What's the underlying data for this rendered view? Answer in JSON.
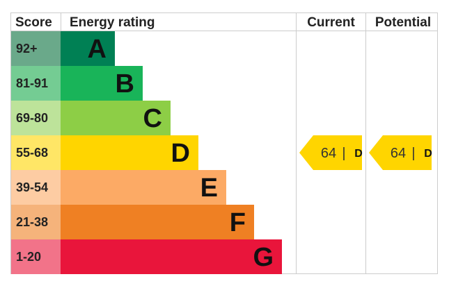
{
  "chart_data": {
    "type": "bar",
    "headers": {
      "score": "Score",
      "rating": "Energy rating",
      "current": "Current",
      "potential": "Potential"
    },
    "bands": [
      {
        "letter": "A",
        "range": "92+",
        "color": "#008054",
        "score_color": "#6aa98a"
      },
      {
        "letter": "B",
        "range": "81-91",
        "color": "#19b459",
        "score_color": "#74cc93"
      },
      {
        "letter": "C",
        "range": "69-80",
        "color": "#8dce46",
        "score_color": "#bde39a"
      },
      {
        "letter": "D",
        "range": "55-68",
        "color": "#ffd500",
        "score_color": "#ffe666"
      },
      {
        "letter": "E",
        "range": "39-54",
        "color": "#fcaa65",
        "score_color": "#fdcca3"
      },
      {
        "letter": "F",
        "range": "21-38",
        "color": "#ef8023",
        "score_color": "#f5b37b"
      },
      {
        "letter": "G",
        "range": "1-20",
        "color": "#e9153b",
        "score_color": "#f27389"
      }
    ],
    "current": {
      "value": "64",
      "separator": "|",
      "band": "D",
      "color": "#ffd500"
    },
    "potential": {
      "value": "64",
      "separator": "|",
      "band": "D",
      "color": "#ffd500"
    }
  }
}
